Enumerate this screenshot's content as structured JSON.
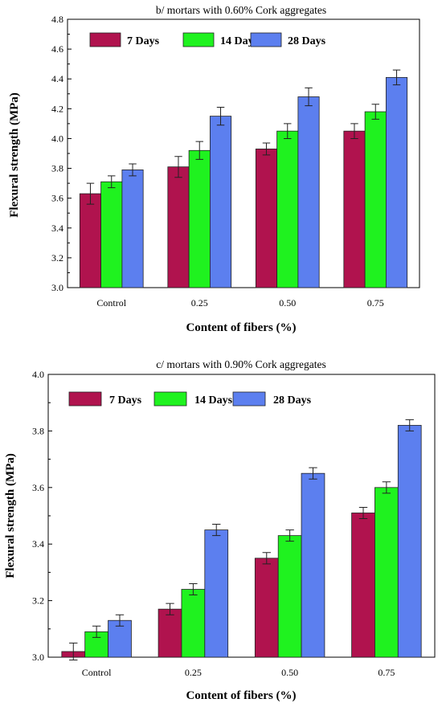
{
  "chart_data": [
    {
      "type": "bar",
      "title": "b/ mortars with 0.60% Cork aggregates",
      "xlabel": "Content of fibers (%)",
      "ylabel": "Flexural strength (MPa)",
      "categories": [
        "Control",
        "0.25",
        "0.50",
        "0.75"
      ],
      "ylim": [
        3.0,
        4.8
      ],
      "yticks": [
        "3.0",
        "3.2",
        "3.4",
        "3.6",
        "3.8",
        "4.0",
        "4.2",
        "4.4",
        "4.6",
        "4.8"
      ],
      "legend_position": "top-left",
      "series": [
        {
          "name": "7 Days",
          "color": "#b0134e",
          "values": [
            3.63,
            3.81,
            3.93,
            4.05
          ],
          "errors": [
            0.07,
            0.07,
            0.04,
            0.05
          ]
        },
        {
          "name": "14 Days",
          "color": "#1ff21f",
          "values": [
            3.71,
            3.92,
            4.05,
            4.18
          ],
          "errors": [
            0.04,
            0.06,
            0.05,
            0.05
          ]
        },
        {
          "name": "28 Days",
          "color": "#5c7fef",
          "values": [
            3.79,
            4.15,
            4.28,
            4.41
          ],
          "errors": [
            0.04,
            0.06,
            0.06,
            0.05
          ]
        }
      ]
    },
    {
      "type": "bar",
      "title": "c/ mortars with 0.90% Cork aggregates",
      "xlabel": "Content of fibers (%)",
      "ylabel": "Flexural strength (MPa)",
      "categories": [
        "Control",
        "0.25",
        "0.50",
        "0.75"
      ],
      "ylim": [
        3.0,
        4.0
      ],
      "yticks": [
        "3.0",
        "3.2",
        "3.4",
        "3.6",
        "3.8",
        "4.0"
      ],
      "legend_position": "top-left",
      "series": [
        {
          "name": "7 Days",
          "color": "#b0134e",
          "values": [
            3.02,
            3.17,
            3.35,
            3.51
          ],
          "errors": [
            0.03,
            0.02,
            0.02,
            0.02
          ]
        },
        {
          "name": "14 Days",
          "color": "#1ff21f",
          "values": [
            3.09,
            3.24,
            3.43,
            3.6
          ],
          "errors": [
            0.02,
            0.02,
            0.02,
            0.02
          ]
        },
        {
          "name": "28 Days",
          "color": "#5c7fef",
          "values": [
            3.13,
            3.45,
            3.65,
            3.82
          ],
          "errors": [
            0.02,
            0.02,
            0.02,
            0.02
          ]
        }
      ]
    }
  ]
}
